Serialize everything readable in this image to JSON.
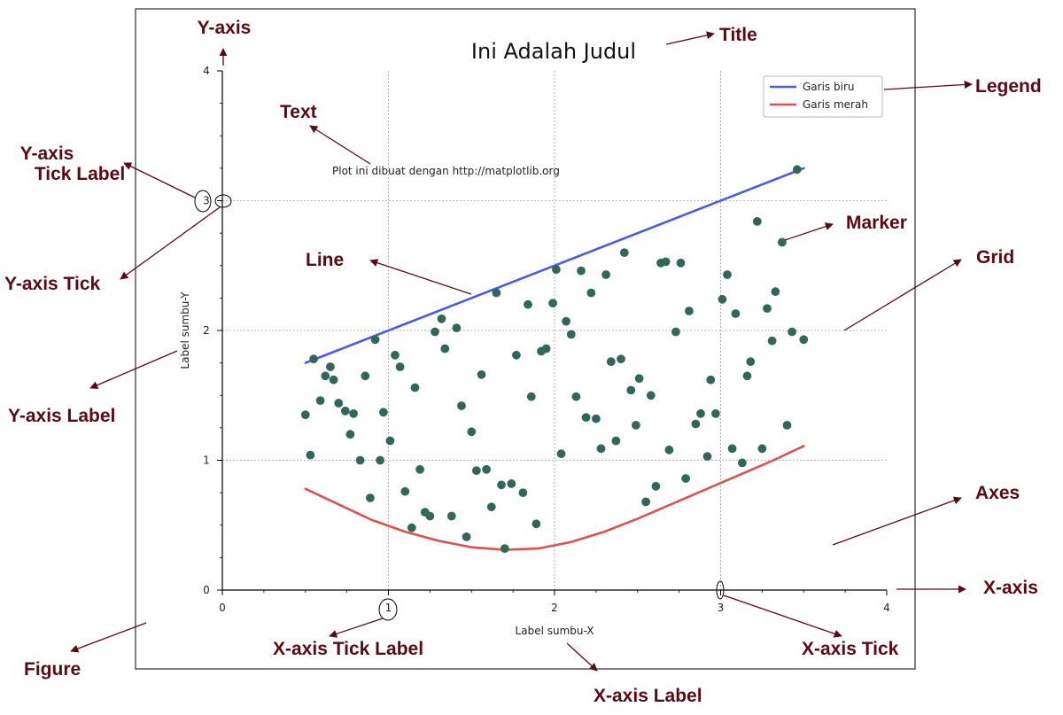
{
  "chart_data": {
    "type": "line",
    "title": "Ini Adalah Judul",
    "xlabel": "Label sumbu-X",
    "ylabel": "Label sumbu-Y",
    "xlim": [
      0,
      4
    ],
    "ylim": [
      0,
      4
    ],
    "x_ticks": [
      "0",
      "1",
      "2",
      "3",
      "4"
    ],
    "y_ticks": [
      "0",
      "1",
      "2",
      "3",
      "4"
    ],
    "grid": true,
    "legend_position": "top-right",
    "annotation_text": "Plot ini dibuat dengan http://matplotlib.org",
    "series": [
      {
        "name": "Garis biru",
        "kind": "line",
        "color": "#4a5ae8",
        "points": [
          [
            0.5,
            1.75
          ],
          [
            3.5,
            3.25
          ]
        ]
      },
      {
        "name": "Garis merah",
        "kind": "line",
        "color": "#d9534f",
        "points": [
          [
            0.5,
            0.78
          ],
          [
            0.7,
            0.66
          ],
          [
            0.9,
            0.54
          ],
          [
            1.1,
            0.45
          ],
          [
            1.3,
            0.38
          ],
          [
            1.5,
            0.33
          ],
          [
            1.7,
            0.31
          ],
          [
            1.9,
            0.32
          ],
          [
            2.1,
            0.37
          ],
          [
            2.3,
            0.45
          ],
          [
            2.5,
            0.55
          ],
          [
            2.7,
            0.66
          ],
          [
            2.9,
            0.77
          ],
          [
            3.1,
            0.88
          ],
          [
            3.3,
            0.99
          ],
          [
            3.5,
            1.11
          ]
        ]
      },
      {
        "name": "",
        "kind": "scatter",
        "color": "#2e6b46",
        "points": [
          [
            0.5,
            1.35
          ],
          [
            0.53,
            1.04
          ],
          [
            0.55,
            1.78
          ],
          [
            0.59,
            1.46
          ],
          [
            0.62,
            1.65
          ],
          [
            0.65,
            1.72
          ],
          [
            0.67,
            1.62
          ],
          [
            0.7,
            1.44
          ],
          [
            0.74,
            1.38
          ],
          [
            0.77,
            1.2
          ],
          [
            0.79,
            1.36
          ],
          [
            0.83,
            1.0
          ],
          [
            0.86,
            1.65
          ],
          [
            0.89,
            0.71
          ],
          [
            0.92,
            1.93
          ],
          [
            0.95,
            1.0
          ],
          [
            0.97,
            1.37
          ],
          [
            1.01,
            1.15
          ],
          [
            1.04,
            1.81
          ],
          [
            1.07,
            1.72
          ],
          [
            1.1,
            0.76
          ],
          [
            1.14,
            0.48
          ],
          [
            1.16,
            1.56
          ],
          [
            1.19,
            0.93
          ],
          [
            1.22,
            0.6
          ],
          [
            1.25,
            0.57
          ],
          [
            1.28,
            1.99
          ],
          [
            1.32,
            2.09
          ],
          [
            1.34,
            1.86
          ],
          [
            1.38,
            0.57
          ],
          [
            1.41,
            2.02
          ],
          [
            1.44,
            1.42
          ],
          [
            1.47,
            0.41
          ],
          [
            1.5,
            1.22
          ],
          [
            1.53,
            0.92
          ],
          [
            1.56,
            1.66
          ],
          [
            1.59,
            0.93
          ],
          [
            1.62,
            0.64
          ],
          [
            1.65,
            2.29
          ],
          [
            1.68,
            0.81
          ],
          [
            1.7,
            0.32
          ],
          [
            1.74,
            0.82
          ],
          [
            1.77,
            1.81
          ],
          [
            1.81,
            0.75
          ],
          [
            1.84,
            2.2
          ],
          [
            1.86,
            1.49
          ],
          [
            1.89,
            0.51
          ],
          [
            1.92,
            1.84
          ],
          [
            1.95,
            1.86
          ],
          [
            1.99,
            2.21
          ],
          [
            2.01,
            2.47
          ],
          [
            2.04,
            1.05
          ],
          [
            2.07,
            2.07
          ],
          [
            2.1,
            1.97
          ],
          [
            2.13,
            1.49
          ],
          [
            2.16,
            2.46
          ],
          [
            2.19,
            1.33
          ],
          [
            2.22,
            2.29
          ],
          [
            2.25,
            1.32
          ],
          [
            2.28,
            1.09
          ],
          [
            2.31,
            2.43
          ],
          [
            2.34,
            1.76
          ],
          [
            2.37,
            1.15
          ],
          [
            2.4,
            1.78
          ],
          [
            2.42,
            2.6
          ],
          [
            2.46,
            1.54
          ],
          [
            2.49,
            1.27
          ],
          [
            2.51,
            1.63
          ],
          [
            2.55,
            0.68
          ],
          [
            2.58,
            1.5
          ],
          [
            2.61,
            0.8
          ],
          [
            2.64,
            2.52
          ],
          [
            2.67,
            2.53
          ],
          [
            2.69,
            1.08
          ],
          [
            2.73,
            1.99
          ],
          [
            2.76,
            2.52
          ],
          [
            2.79,
            0.86
          ],
          [
            2.81,
            2.15
          ],
          [
            2.85,
            1.28
          ],
          [
            2.88,
            1.36
          ],
          [
            2.92,
            1.03
          ],
          [
            2.94,
            1.62
          ],
          [
            2.97,
            1.36
          ],
          [
            3.01,
            2.24
          ],
          [
            3.04,
            2.43
          ],
          [
            3.07,
            1.09
          ],
          [
            3.09,
            2.13
          ],
          [
            3.13,
            0.98
          ],
          [
            3.16,
            1.65
          ],
          [
            3.18,
            1.76
          ],
          [
            3.22,
            2.84
          ],
          [
            3.25,
            1.09
          ],
          [
            3.28,
            2.17
          ],
          [
            3.31,
            1.92
          ],
          [
            3.33,
            2.3
          ],
          [
            3.37,
            2.68
          ],
          [
            3.4,
            1.27
          ],
          [
            3.43,
            1.99
          ],
          [
            3.46,
            3.24
          ],
          [
            3.5,
            1.93
          ]
        ]
      }
    ]
  },
  "annotations": {
    "y_axis": "Y-axis",
    "title": "Title",
    "legend": "Legend",
    "text": "Text",
    "y_tick_label_line1": "Y-axis",
    "y_tick_label_line2": "Tick Label",
    "marker": "Marker",
    "grid": "Grid",
    "line": "Line",
    "y_axis_tick": "Y-axis Tick",
    "y_axis_label": "Y-axis Label",
    "axes": "Axes",
    "x_axis": "X-axis",
    "x_tick_label": "X-axis Tick Label",
    "x_axis_tick": "X-axis Tick",
    "figure": "Figure",
    "x_axis_label": "X-axis Label"
  },
  "colors": {
    "annotation": "#5a0a12",
    "grid": "#9a9a9a",
    "axis": "#000000"
  }
}
